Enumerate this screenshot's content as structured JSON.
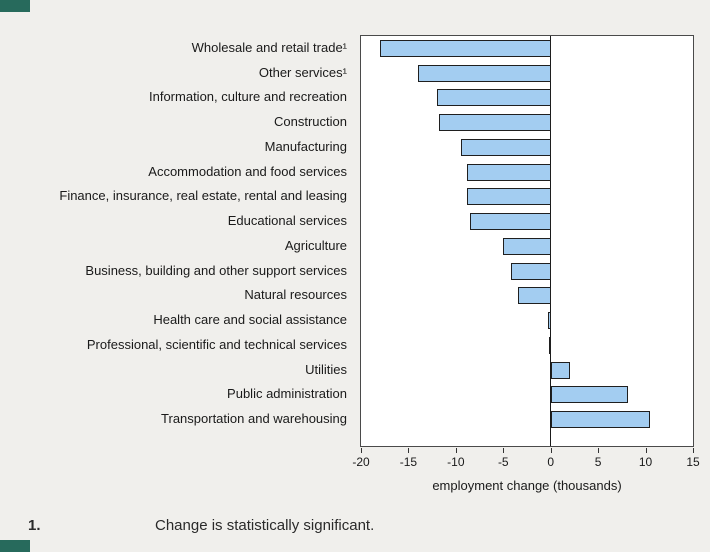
{
  "theme": {
    "page_bg": "#f0efec",
    "plot_bg": "#ffffff",
    "bar_fill": "#a3cdf1",
    "bar_border": "#1f1f1f",
    "axis_color": "#4a4a4a",
    "text_color": "#1a1a1a",
    "corner_color": "#276a5c"
  },
  "chart_data": {
    "type": "bar",
    "orientation": "horizontal",
    "xlabel": "employment change (thousands)",
    "xlim": [
      -20,
      15
    ],
    "xticks": [
      -20,
      -15,
      -10,
      -5,
      0,
      5,
      10,
      15
    ],
    "grid": false,
    "legend": "none",
    "categories": [
      "Wholesale and retail trade¹",
      "Other services¹",
      "Information, culture and recreation",
      "Construction",
      "Manufacturing",
      "Accommodation and food services",
      "Finance, insurance, real estate, rental and leasing",
      "Educational services",
      "Agriculture",
      "Business, building and other support services",
      "Natural resources",
      "Health care and social assistance",
      "Professional, scientific and technical services",
      "Utilities",
      "Public administration",
      "Transportation and warehousing"
    ],
    "values": [
      -18,
      -14,
      -12,
      -11.8,
      -9.5,
      -8.8,
      -8.8,
      -8.5,
      -5,
      -4.2,
      -3.5,
      -0.3,
      -0.2,
      2,
      8.2,
      10.5
    ]
  },
  "footnote": {
    "marker": "1.",
    "text": "Change is statistically significant."
  }
}
